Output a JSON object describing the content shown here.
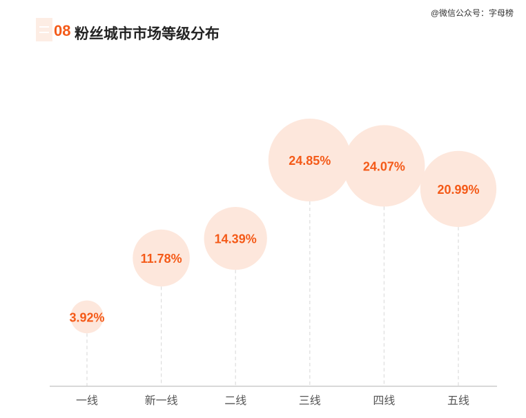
{
  "watermark": "@微信公众号：字母榜",
  "title": {
    "number": "08",
    "text": "粉丝城市市场等级分布"
  },
  "colors": {
    "accent": "#f45a18",
    "bubble": "#fde7dc",
    "axis": "#cccccc",
    "dash": "#dddddd"
  },
  "chart_data": {
    "type": "scatter",
    "categories": [
      "一线",
      "新一线",
      "二线",
      "三线",
      "四线",
      "五线"
    ],
    "values": [
      3.92,
      11.78,
      14.39,
      24.85,
      24.07,
      20.99
    ],
    "labels": [
      "3.92%",
      "11.78%",
      "14.39%",
      "24.85%",
      "24.07%",
      "20.99%"
    ],
    "unit": "%",
    "grid": false,
    "legend": "none"
  }
}
